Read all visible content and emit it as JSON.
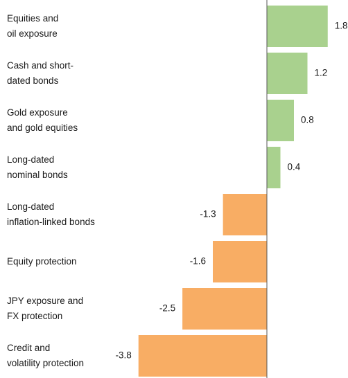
{
  "chart_data": {
    "type": "bar",
    "orientation": "horizontal",
    "categories": [
      [
        "Equities and",
        "oil exposure"
      ],
      [
        "Cash and short-",
        "dated bonds"
      ],
      [
        "Gold exposure",
        "and gold equities"
      ],
      [
        "Long-dated",
        "nominal bonds"
      ],
      [
        "Long-dated",
        "inflation-linked bonds"
      ],
      [
        "Equity protection"
      ],
      [
        "JPY exposure and",
        "FX protection"
      ],
      [
        "Credit and",
        "volatility protection"
      ]
    ],
    "values": [
      1.8,
      1.2,
      0.8,
      0.4,
      -1.3,
      -1.6,
      -2.5,
      -3.8
    ],
    "value_labels": [
      "1.8",
      "1.2",
      "0.8",
      "0.4",
      "-1.3",
      "-1.6",
      "-2.5",
      "-3.8"
    ],
    "colors": {
      "positive": "#a9d18e",
      "negative": "#f8ad64",
      "axis": "#555555"
    },
    "xlim": [
      -3.8,
      1.8
    ],
    "title": "",
    "xlabel": "",
    "ylabel": ""
  }
}
